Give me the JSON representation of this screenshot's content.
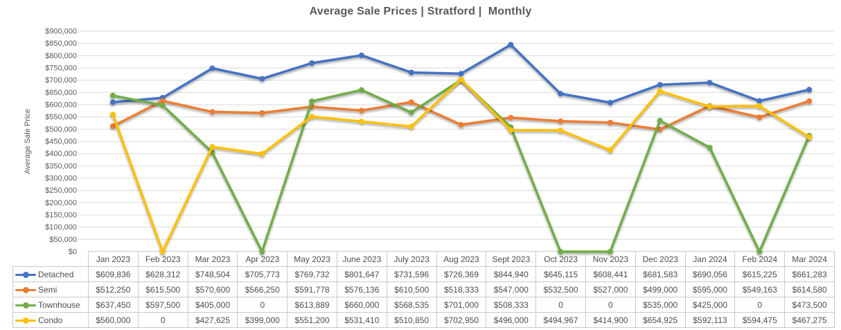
{
  "chart_data": {
    "type": "line",
    "title": "Average Sale Prices | Stratford |  Monthly",
    "xlabel": "",
    "ylabel": "Average Sale Price",
    "ylim": [
      0,
      900000
    ],
    "ytick_step": 50000,
    "grid": true,
    "legend_position": "data-table-left",
    "value_prefix": "$",
    "zero_display": "0",
    "y_tick_labels": [
      "$900,000",
      "$850,000",
      "$800,000",
      "$750,000",
      "$700,000",
      "$650,000",
      "$600,000",
      "$550,000",
      "$500,000",
      "$450,000",
      "$400,000",
      "$350,000",
      "$300,000",
      "$250,000",
      "$200,000",
      "$150,000",
      "$100,000",
      "$50,000",
      "$0"
    ],
    "categories": [
      "Jan 2023",
      "Feb 2023",
      "Mar 2023",
      "Apr 2023",
      "May 2023",
      "June 2023",
      "July 2023",
      "Aug 2023",
      "Sept 2023",
      "Oct 2023",
      "Nov 2023",
      "Dec 2023",
      "Jan 2024",
      "Feb 2024",
      "Mar 2024"
    ],
    "series": [
      {
        "name": "Detached",
        "color": "#4472C4",
        "values": [
          609836,
          628312,
          748504,
          705773,
          769732,
          801647,
          731596,
          726369,
          844940,
          645115,
          608441,
          681583,
          690056,
          615225,
          661283
        ]
      },
      {
        "name": "Semi",
        "color": "#ED7D31",
        "values": [
          512250,
          615500,
          570600,
          566250,
          591778,
          576136,
          610500,
          518333,
          547000,
          532500,
          527000,
          499000,
          595000,
          549163,
          614580
        ]
      },
      {
        "name": "Townhouse",
        "color": "#70AD47",
        "values": [
          637450,
          597500,
          405000,
          0,
          613889,
          660000,
          568535,
          701000,
          508333,
          0,
          0,
          535000,
          425000,
          0,
          473500
        ]
      },
      {
        "name": "Condo",
        "color": "#FFC000",
        "values": [
          560000,
          0,
          427625,
          399000,
          551200,
          531410,
          510850,
          702950,
          496000,
          494967,
          414900,
          654925,
          592113,
          594475,
          467275
        ]
      }
    ]
  },
  "colors": {
    "gridline": "#d9d9d9",
    "table_border": "#c9c9c9",
    "text": "#595959"
  }
}
